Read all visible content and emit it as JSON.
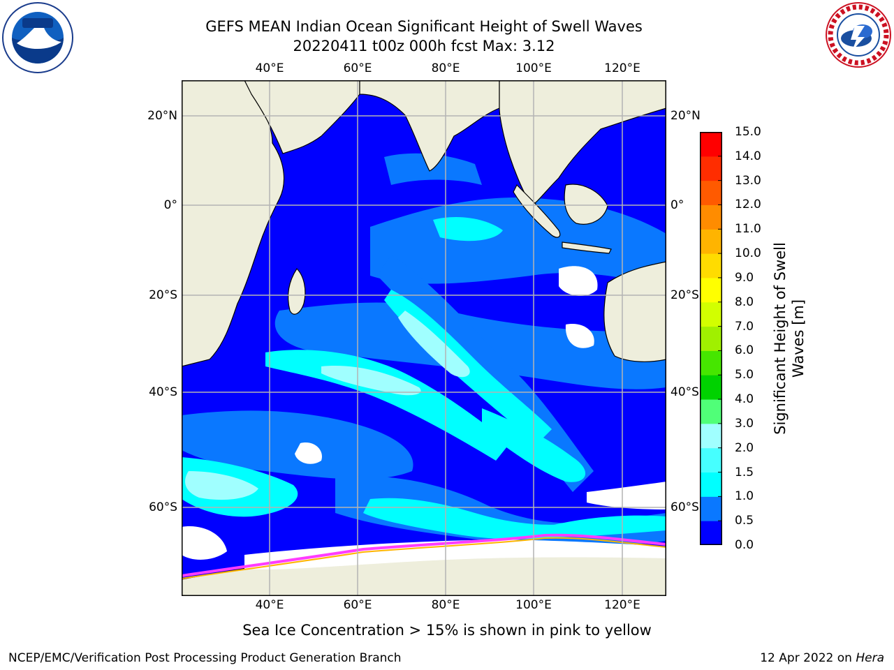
{
  "title": "GEFS MEAN Indian Ocean Significant Height of Swell Waves",
  "subtitle": "20220411 t00z 000h fcst   Max: 3.12",
  "longitude_labels": [
    "40°E",
    "60°E",
    "80°E",
    "100°E",
    "120°E"
  ],
  "latitude_labels": [
    "20°N",
    "0°",
    "20°S",
    "40°S",
    "60°S"
  ],
  "colorbar": {
    "label": "Significant Height of Swell Waves [m]",
    "ticks": [
      "0.0",
      "0.5",
      "1.0",
      "1.5",
      "2.0",
      "3.0",
      "4.0",
      "5.0",
      "6.0",
      "7.0",
      "8.0",
      "9.0",
      "10.0",
      "11.0",
      "12.0",
      "13.0",
      "14.0",
      "15.0"
    ],
    "colors": [
      "#0000ff",
      "#0a78ff",
      "#00ffff",
      "#46ffff",
      "#a0ffff",
      "#50ff78",
      "#00d200",
      "#46e600",
      "#a0f000",
      "#d2ff00",
      "#ffff00",
      "#ffdc00",
      "#ffb400",
      "#ff8c00",
      "#ff5a00",
      "#ff2d00",
      "#ff0000"
    ]
  },
  "footnote": "Sea Ice Concentration > 15% is shown in pink to yellow",
  "credit": "NCEP/EMC/Verification Post Processing Product Generation Branch",
  "date": "12 Apr 2022 on",
  "machine": "Hera",
  "logos": {
    "left": "noaa-logo",
    "right": "nws-logo"
  },
  "colors": {
    "land": "#eeeedc",
    "sea_ice_edge": "#ff3cff",
    "grid": "#b4b4b4"
  }
}
